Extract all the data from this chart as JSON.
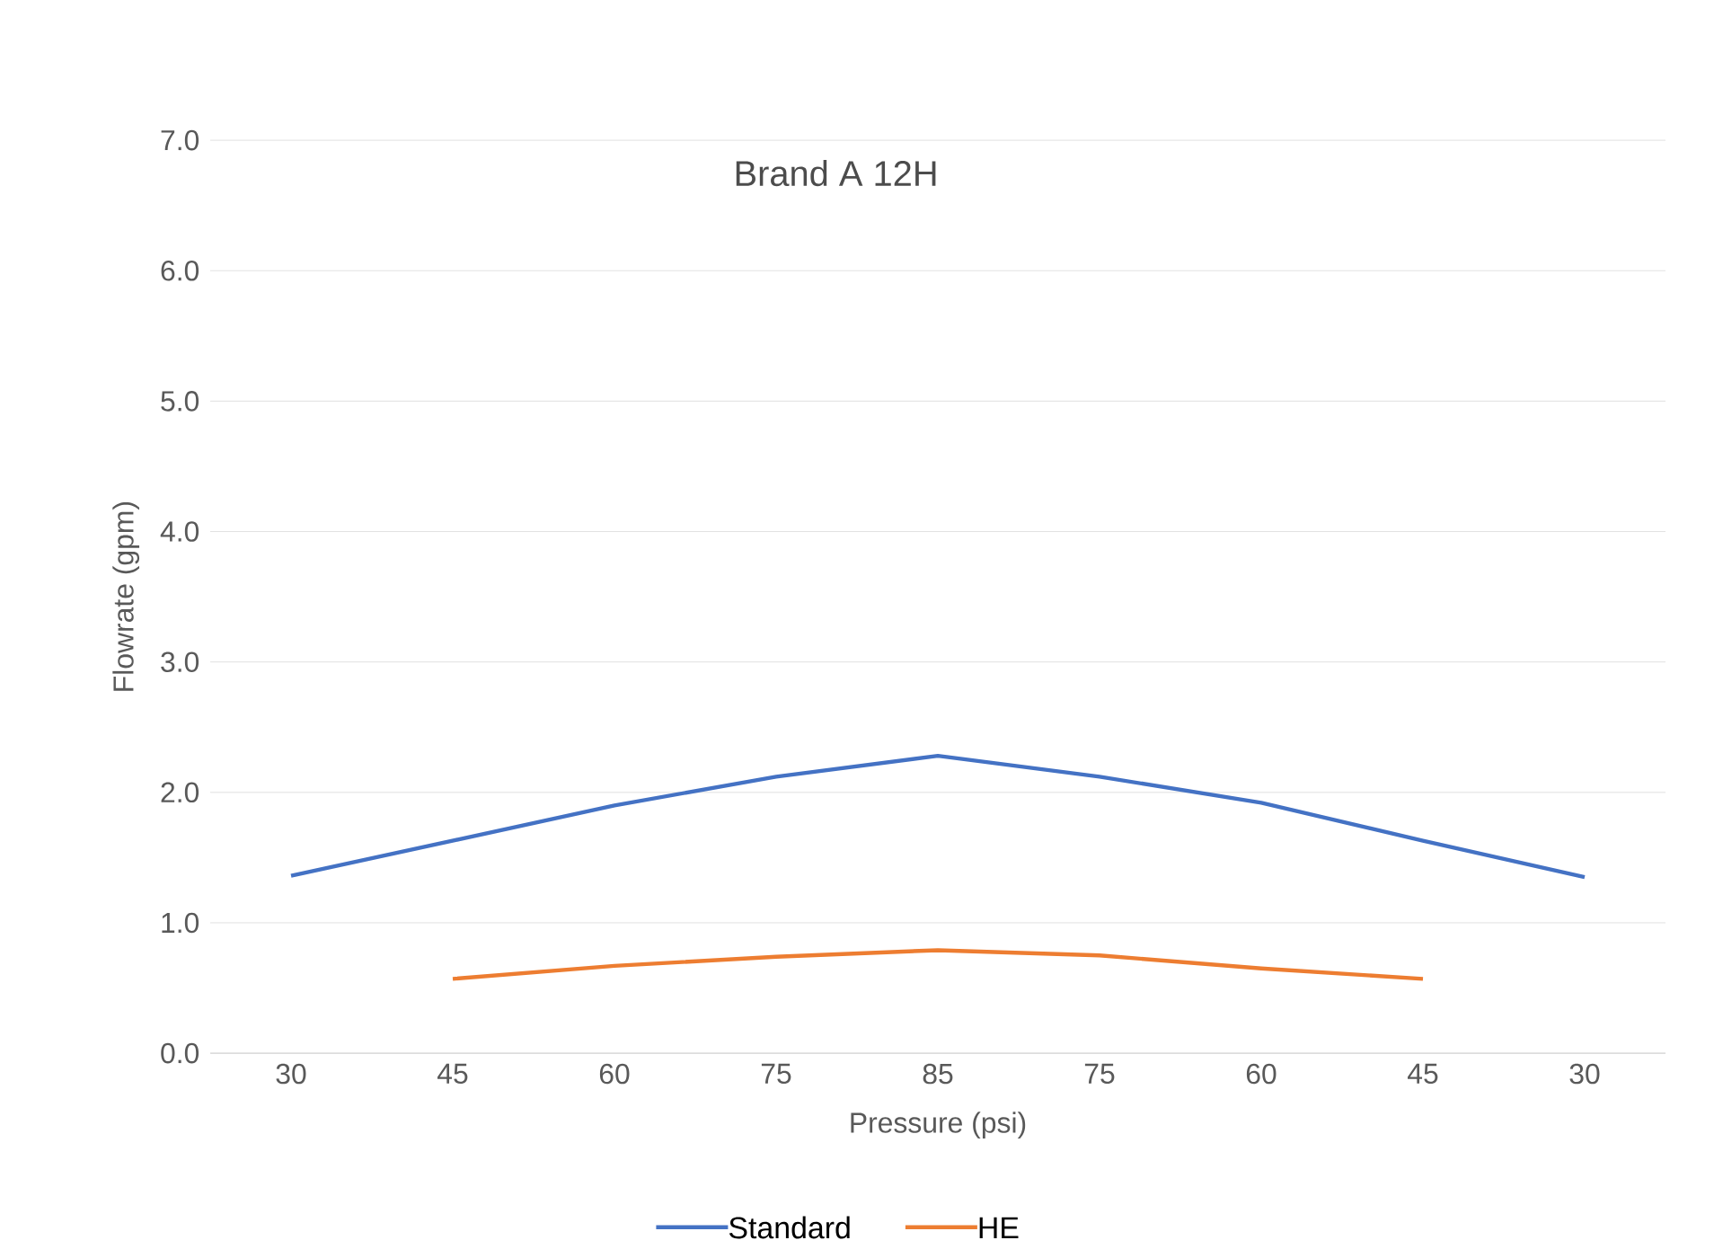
{
  "chart_data": {
    "type": "line",
    "title": "Brand A 12H",
    "xlabel": "Pressure (psi)",
    "ylabel": "Flowrate (gpm)",
    "categories": [
      "30",
      "45",
      "60",
      "75",
      "85",
      "75",
      "60",
      "45",
      "30"
    ],
    "series": [
      {
        "name": "Standard",
        "color": "#4472c4",
        "values": [
          1.36,
          1.63,
          1.9,
          2.12,
          2.28,
          2.12,
          1.92,
          1.63,
          1.35
        ]
      },
      {
        "name": "HE",
        "color": "#ed7d31",
        "values": [
          null,
          0.57,
          0.67,
          0.74,
          0.79,
          0.75,
          0.65,
          0.57,
          null
        ]
      }
    ],
    "ylim": [
      0,
      7
    ],
    "yticks": [
      {
        "value": 0,
        "label": "0.0"
      },
      {
        "value": 1,
        "label": "1.0"
      },
      {
        "value": 2,
        "label": "2.0"
      },
      {
        "value": 3,
        "label": "3.0"
      },
      {
        "value": 4,
        "label": "4.0"
      },
      {
        "value": 5,
        "label": "5.0"
      },
      {
        "value": 6,
        "label": "6.0"
      },
      {
        "value": 7,
        "label": "7.0"
      }
    ],
    "grid": "y",
    "legend": "bottom",
    "marker": "none",
    "line_style": "solid"
  }
}
